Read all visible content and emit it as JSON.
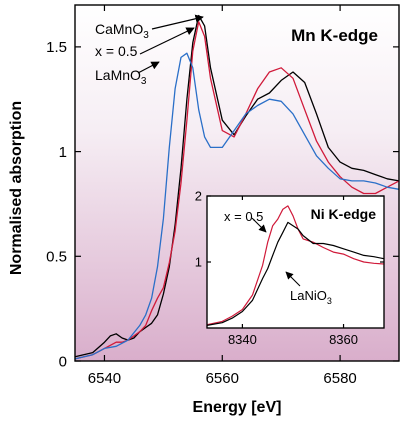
{
  "chart_data": [
    {
      "type": "line",
      "panel": "main",
      "title": "Mn K-edge",
      "xlabel": "Energy [eV]",
      "ylabel": "Normalised absorption",
      "xlim": [
        6535,
        6590
      ],
      "ylim": [
        0,
        1.7
      ],
      "xticks": [
        6540,
        6560,
        6580
      ],
      "xtick_labels": [
        "6540",
        "6560",
        "6580"
      ],
      "yticks": [
        0,
        0.5,
        1,
        1.5
      ],
      "ytick_labels": [
        "0",
        "0.5",
        "1",
        "1.5"
      ],
      "background": "gradient white-to-mauve",
      "series": [
        {
          "name": "CaMnO3",
          "color": "#000000",
          "x": [
            6535,
            6538,
            6540,
            6541,
            6542,
            6543,
            6544,
            6545,
            6546,
            6547,
            6548,
            6549,
            6550,
            6551,
            6552,
            6553,
            6554,
            6555,
            6556,
            6557,
            6558,
            6560,
            6562,
            6564,
            6566,
            6568,
            6570,
            6572,
            6574,
            6576,
            6578,
            6580,
            6582,
            6584,
            6586,
            6588,
            6590
          ],
          "y": [
            0.02,
            0.04,
            0.09,
            0.12,
            0.13,
            0.11,
            0.1,
            0.11,
            0.14,
            0.16,
            0.18,
            0.22,
            0.32,
            0.45,
            0.65,
            0.92,
            1.25,
            1.52,
            1.65,
            1.6,
            1.4,
            1.15,
            1.08,
            1.17,
            1.25,
            1.28,
            1.34,
            1.38,
            1.33,
            1.18,
            1.02,
            0.95,
            0.92,
            0.91,
            0.89,
            0.87,
            0.86
          ]
        },
        {
          "name": "x = 0.5",
          "color": "#d01a3a",
          "x": [
            6535,
            6538,
            6540,
            6542,
            6543,
            6544,
            6545,
            6546,
            6547,
            6548,
            6549,
            6550,
            6551,
            6552,
            6553,
            6554,
            6555,
            6556,
            6557,
            6558,
            6560,
            6562,
            6564,
            6566,
            6568,
            6570,
            6572,
            6574,
            6576,
            6578,
            6580,
            6582,
            6584,
            6586,
            6588,
            6590
          ],
          "y": [
            0.01,
            0.03,
            0.06,
            0.09,
            0.09,
            0.1,
            0.12,
            0.14,
            0.17,
            0.24,
            0.3,
            0.35,
            0.47,
            0.62,
            0.85,
            1.15,
            1.48,
            1.62,
            1.55,
            1.35,
            1.1,
            1.07,
            1.18,
            1.3,
            1.38,
            1.4,
            1.35,
            1.2,
            1.05,
            0.95,
            0.88,
            0.83,
            0.8,
            0.8,
            0.83,
            0.86
          ]
        },
        {
          "name": "LaMnO3",
          "color": "#2a6fc8",
          "x": [
            6535,
            6538,
            6540,
            6542,
            6544,
            6546,
            6547,
            6548,
            6549,
            6550,
            6551,
            6552,
            6553,
            6554,
            6555,
            6556,
            6557,
            6558,
            6560,
            6562,
            6564,
            6566,
            6568,
            6570,
            6572,
            6574,
            6576,
            6578,
            6580,
            6582,
            6584,
            6586,
            6588,
            6590
          ],
          "y": [
            0.01,
            0.03,
            0.06,
            0.07,
            0.1,
            0.17,
            0.22,
            0.3,
            0.45,
            0.68,
            1.02,
            1.3,
            1.45,
            1.47,
            1.4,
            1.2,
            1.07,
            1.02,
            1.02,
            1.1,
            1.18,
            1.22,
            1.25,
            1.24,
            1.18,
            1.08,
            0.98,
            0.92,
            0.87,
            0.86,
            0.86,
            0.85,
            0.83,
            0.82
          ]
        }
      ],
      "annotations": [
        {
          "text": "CaMnO",
          "subscript": "3",
          "points_to_series": "CaMnO3"
        },
        {
          "text": "x = 0.5",
          "subscript": "",
          "points_to_series": "x = 0.5"
        },
        {
          "text": "LaMnO",
          "subscript": "3",
          "points_to_series": "LaMnO3"
        }
      ]
    },
    {
      "type": "line",
      "panel": "inset",
      "title": "Ni K-edge",
      "xlim": [
        8333,
        8368
      ],
      "ylim": [
        0,
        2
      ],
      "xticks": [
        8340,
        8360
      ],
      "xtick_labels": [
        "8340",
        "8360"
      ],
      "yticks": [
        1,
        2
      ],
      "ytick_labels": [
        "1",
        "2"
      ],
      "series": [
        {
          "name": "x = 0.5",
          "color": "#d01a3a",
          "x": [
            8333,
            8336,
            8338,
            8340,
            8342,
            8344,
            8345,
            8346,
            8347,
            8348,
            8349,
            8350,
            8351,
            8352,
            8354,
            8356,
            8358,
            8360,
            8362,
            8364,
            8366,
            8368
          ],
          "y": [
            0.05,
            0.1,
            0.18,
            0.28,
            0.5,
            0.95,
            1.3,
            1.55,
            1.65,
            1.8,
            1.85,
            1.7,
            1.5,
            1.35,
            1.3,
            1.22,
            1.15,
            1.12,
            1.05,
            1.0,
            0.98,
            0.97
          ]
        },
        {
          "name": "LaNiO3",
          "color": "#000000",
          "x": [
            8333,
            8336,
            8338,
            8340,
            8342,
            8344,
            8345,
            8346,
            8347,
            8348,
            8349,
            8350,
            8351,
            8352,
            8354,
            8356,
            8358,
            8360,
            8362,
            8364,
            8366,
            8368
          ],
          "y": [
            0.04,
            0.08,
            0.15,
            0.25,
            0.42,
            0.75,
            0.9,
            1.1,
            1.3,
            1.45,
            1.6,
            1.55,
            1.5,
            1.4,
            1.28,
            1.28,
            1.25,
            1.2,
            1.15,
            1.1,
            1.08,
            1.05
          ]
        }
      ],
      "annotations": [
        {
          "text": "x = 0.5",
          "subscript": "",
          "points_to_series": "x = 0.5"
        },
        {
          "text": "LaNiO",
          "subscript": "3",
          "points_to_series": "LaNiO3"
        }
      ]
    }
  ]
}
